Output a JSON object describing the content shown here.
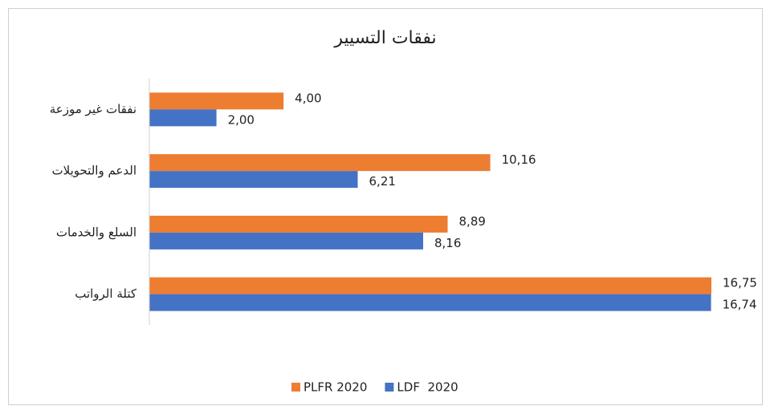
{
  "chart_data": {
    "type": "hbar",
    "title": "نفقات التسيير",
    "categories": [
      "نفقات غير موزعة",
      "الدعم والتحويلات",
      "السلع والخدمات",
      "كتلة الرواتب"
    ],
    "series": [
      {
        "name": "PLFR 2020",
        "color": "#ED7D31",
        "values": [
          4,
          10.16,
          8.89,
          16.75
        ],
        "value_labels": [
          "4,00",
          "10,16",
          "8,89",
          "16,75"
        ]
      },
      {
        "name": "LDF  2020",
        "color": "#4472C4",
        "values": [
          2,
          6.21,
          8.16,
          16.74
        ],
        "value_labels": [
          "2,00",
          "6,21",
          "8,16",
          "16,74"
        ]
      }
    ],
    "legend": "bottom"
  }
}
